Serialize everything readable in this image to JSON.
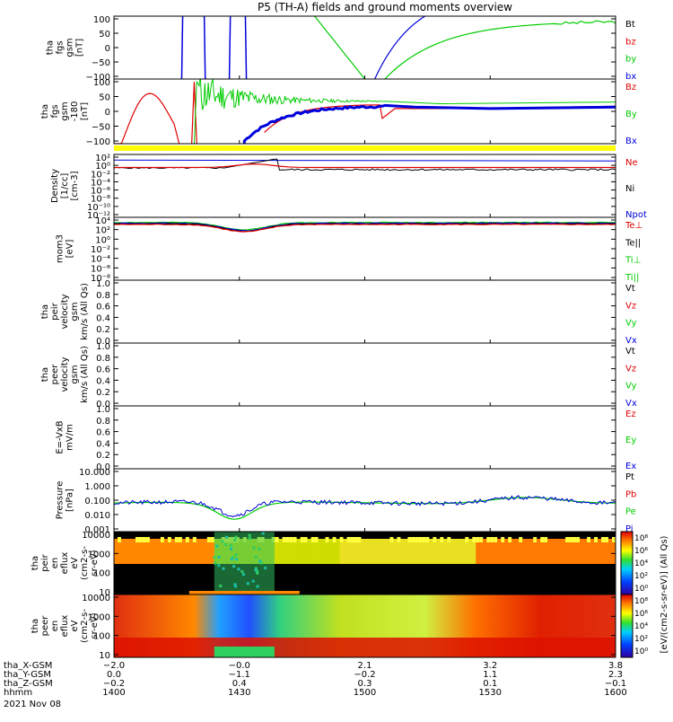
{
  "title": "P5 (TH-A) fields and ground moments overview",
  "colors": {
    "black": "#000000",
    "red": "#e00000",
    "green": "#00cc00",
    "blue": "#0000dd",
    "yellow": "#ffff00"
  },
  "panels": [
    {
      "id": "fgs",
      "ylabel": [
        "tha",
        "fgs",
        "gsm",
        "[nT]"
      ],
      "ticks": [
        "100",
        "50",
        "0",
        "−50",
        "−100"
      ],
      "legend": [
        {
          "text": "Bt",
          "color": "black"
        },
        {
          "text": "bz",
          "color": "red"
        },
        {
          "text": "by",
          "color": "green"
        },
        {
          "text": "bx",
          "color": "blue"
        }
      ]
    },
    {
      "id": "fgs-dsl",
      "ylabel": [
        "tha",
        "fgs",
        "gsm",
        "-180",
        "[nT]"
      ],
      "ticks": [
        "100",
        "50",
        "0",
        "−50",
        "−100"
      ],
      "legend": [
        {
          "text": "Bz",
          "color": "red"
        },
        {
          "text": "By",
          "color": "green"
        },
        {
          "text": "Bx",
          "color": "blue"
        }
      ]
    },
    {
      "id": "density",
      "ylabel": [
        "Density",
        "[1/cc]",
        "[cm-3]"
      ],
      "ticks": [
        "10²",
        "10⁰",
        "10⁻²",
        "10⁻⁴",
        "10⁻⁶",
        "10⁻⁸",
        "10⁻¹⁰",
        "10⁻¹²"
      ],
      "legend": [
        {
          "text": "Ne",
          "color": "red"
        },
        {
          "text": "Ni",
          "color": "black"
        },
        {
          "text": "Npot",
          "color": "blue"
        }
      ]
    },
    {
      "id": "temperature",
      "ylabel": [
        "mom3",
        "[eV]"
      ],
      "ticks": [
        "10⁴",
        "10²",
        "10⁰",
        "10⁻²",
        "10⁻⁴",
        "10⁻⁶",
        "10⁻⁸"
      ],
      "legend": [
        {
          "text": "Te⊥",
          "color": "red"
        },
        {
          "text": "Te||",
          "color": "black"
        },
        {
          "text": "Ti⊥",
          "color": "green"
        },
        {
          "text": "Ti||",
          "color": "green"
        }
      ]
    },
    {
      "id": "peir-velocity",
      "ylabel": [
        "tha",
        "peir",
        "velocity",
        "gsm",
        "km/s (All Qs)"
      ],
      "ticks": [
        "1.0",
        "0.8",
        "0.6",
        "0.4",
        "0.2",
        "0.0"
      ],
      "legend": [
        {
          "text": "Vt",
          "color": "black"
        },
        {
          "text": "Vz",
          "color": "red"
        },
        {
          "text": "Vy",
          "color": "green"
        },
        {
          "text": "Vx",
          "color": "blue"
        }
      ]
    },
    {
      "id": "peer-velocity",
      "ylabel": [
        "tha",
        "peer",
        "velocity",
        "gsm",
        "km/s (All Qs)"
      ],
      "ticks": [
        "1.0",
        "0.8",
        "0.6",
        "0.4",
        "0.2",
        "0.0"
      ],
      "legend": [
        {
          "text": "Vt",
          "color": "black"
        },
        {
          "text": "Vz",
          "color": "red"
        },
        {
          "text": "Vy",
          "color": "green"
        },
        {
          "text": "Vx",
          "color": "blue"
        }
      ]
    },
    {
      "id": "efield",
      "ylabel": [
        "E=-VxB",
        "mV/m"
      ],
      "ticks": [
        "1.0",
        "0.8",
        "0.6",
        "0.4",
        "0.2",
        "0.0"
      ],
      "legend": [
        {
          "text": "Ez",
          "color": "red"
        },
        {
          "text": "Ey",
          "color": "green"
        },
        {
          "text": "Ex",
          "color": "blue"
        }
      ]
    },
    {
      "id": "pressure",
      "ylabel": [
        "Pressure",
        "[nPa]"
      ],
      "ticks": [
        "10.000",
        "1.000",
        "0.100",
        "0.010",
        "0.001"
      ],
      "legend": [
        {
          "text": "Pt",
          "color": "black"
        },
        {
          "text": "Pb",
          "color": "red"
        },
        {
          "text": "Pe",
          "color": "green"
        },
        {
          "text": "Pi",
          "color": "blue"
        }
      ]
    },
    {
      "id": "peir-spec",
      "ylabel": [
        "tha",
        "peir",
        "en",
        "eflux",
        "eV",
        "(cm2-s-",
        "sr-eV)"
      ],
      "ticks": [
        "10000",
        "1000",
        "100",
        "10"
      ]
    },
    {
      "id": "peer-spec",
      "ylabel": [
        "tha",
        "peer",
        "en",
        "eflux",
        "eV",
        "(cm2-s-",
        "sr-eV)"
      ],
      "ticks": [
        "10000",
        "1000",
        "100",
        "10"
      ]
    }
  ],
  "colorbar": {
    "label": "[eV/(cm2-s-sr-eV)] (All Qs)",
    "ticks_top": [
      "10⁸",
      "10⁶",
      "10⁴",
      "10²",
      "10⁰"
    ],
    "ticks_bottom": [
      "10⁸",
      "10⁶",
      "10⁴",
      "10²",
      "10⁰"
    ]
  },
  "xaxis": {
    "rows": [
      {
        "label": "tha_X-GSM",
        "values": [
          "−2.0",
          "−0.0",
          "2.1",
          "3.2",
          "3.8"
        ]
      },
      {
        "label": "tha_Y-GSM",
        "values": [
          "0.0",
          "−1.1",
          "−0.2",
          "1.1",
          "2.3"
        ]
      },
      {
        "label": "tha_Z-GSM",
        "values": [
          "−0.2",
          "0.4",
          "0.3",
          "0.1",
          "−0.1"
        ]
      },
      {
        "label": "hhmm",
        "values": [
          "1400",
          "1430",
          "1500",
          "1530",
          "1600"
        ]
      }
    ],
    "date": "2021 Nov 08"
  },
  "chart_data": {
    "type": "line",
    "title": "P5 (TH-A) fields and ground moments overview",
    "x_hhmm": [
      "1400",
      "1430",
      "1500",
      "1530",
      "1600"
    ],
    "series": [
      {
        "name": "Density Ne",
        "x": [
          1400,
          1420,
          1428,
          1436,
          1442,
          1450,
          1500,
          1530,
          1600
        ],
        "y": [
          0.08,
          0.08,
          0.3,
          2.0,
          1.5,
          0.05,
          0.03,
          0.05,
          0.08
        ]
      },
      {
        "name": "Pressure Pt",
        "x": [
          1400,
          1415,
          1425,
          1430,
          1435,
          1445,
          1500,
          1520,
          1535,
          1545,
          1600
        ],
        "y": [
          0.06,
          0.08,
          0.03,
          0.008,
          0.03,
          0.1,
          0.06,
          0.08,
          0.2,
          0.2,
          0.12
        ]
      },
      {
        "name": "mom3 Te",
        "x": [
          1400,
          1420,
          1428,
          1430,
          1436,
          1442,
          1500,
          1600
        ],
        "y": [
          1000,
          1000,
          100,
          30,
          100,
          1000,
          1000,
          1000
        ]
      }
    ]
  }
}
